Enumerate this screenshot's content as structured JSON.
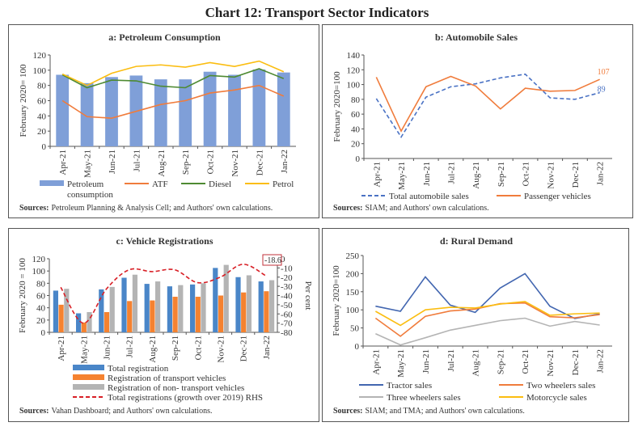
{
  "title": "Chart 12: Transport Sector Indicators",
  "colors": {
    "blue_bar": "#7f9fd8",
    "orange": "#f07c3c",
    "green": "#4e8a32",
    "yellow": "#fbbd10",
    "navy": "#4266b0",
    "gray": "#b4b4b4",
    "tblue": "#4a86c8",
    "torange": "#f58230",
    "red": "#d81f26",
    "dashblue": "#4a72c4"
  },
  "chart_data": [
    {
      "type": "bar+line",
      "title": "a: Petroleum Consumption",
      "ylabel": "February 2020= 100",
      "ylim": [
        0,
        120
      ],
      "yticks": [
        0,
        20,
        40,
        60,
        80,
        100,
        120
      ],
      "categories": [
        "Apr-21",
        "May-21",
        "Jun-21",
        "Jul-21",
        "Aug-21",
        "Sep-21",
        "Oct-21",
        "Nov-21",
        "Dec-21",
        "Jan-22"
      ],
      "series": [
        {
          "name": "Petroleum consumption",
          "name_lines": [
            "Petroleum",
            "consumption"
          ],
          "kind": "bar",
          "color": "#7f9fd8",
          "values": [
            94,
            83,
            91,
            93,
            88,
            88,
            98,
            94,
            101,
            97
          ]
        },
        {
          "name": "ATF",
          "kind": "line",
          "color": "#f07c3c",
          "values": [
            60,
            39,
            37,
            46,
            55,
            60,
            70,
            74,
            80,
            66
          ]
        },
        {
          "name": "Diesel",
          "kind": "line",
          "color": "#4e8a32",
          "values": [
            94,
            77,
            87,
            86,
            79,
            77,
            93,
            91,
            102,
            89
          ]
        },
        {
          "name": "Petrol",
          "kind": "line",
          "color": "#fbbd10",
          "values": [
            95,
            80,
            96,
            105,
            107,
            104,
            110,
            105,
            112,
            98
          ]
        }
      ],
      "legend": "bottom",
      "source_label": "Sources:",
      "source": "Petroleum Planning & Analysis Cell; and Authors' own calculations."
    },
    {
      "type": "line",
      "title": "b: Automobile Sales",
      "ylabel": "February 2020=100",
      "ylim": [
        0,
        140
      ],
      "yticks": [
        0,
        20,
        40,
        60,
        80,
        100,
        120,
        140
      ],
      "categories": [
        "Apr-21",
        "May-21",
        "Jun-21",
        "Jul-21",
        "Aug-21",
        "Sep-21",
        "Oct-21",
        "Nov-21",
        "Dec-21",
        "Jan-22"
      ],
      "series": [
        {
          "name": "Total automobile sales",
          "kind": "dashed",
          "color": "#4a72c4",
          "values": [
            81,
            29,
            83,
            97,
            101,
            109,
            114,
            82,
            80,
            89
          ],
          "end_label": "89"
        },
        {
          "name": "Passenger vehicles",
          "kind": "line",
          "color": "#f07c3c",
          "values": [
            110,
            37,
            97,
            111,
            98,
            67,
            95,
            91,
            92,
            107
          ],
          "end_label": "107"
        }
      ],
      "legend": "bottom",
      "source_label": "Sources:",
      "source": "SIAM; and Authors' own calculations."
    },
    {
      "type": "bar+line",
      "title": "c: Vehicle Registrations",
      "ylabel": "February 2020 = 100",
      "ylim": [
        0,
        120
      ],
      "yticks": [
        0,
        20,
        40,
        60,
        80,
        100,
        120
      ],
      "y2label": "Per cent",
      "y2lim": [
        -80,
        0
      ],
      "y2ticks": [
        0,
        -10,
        -20,
        -30,
        -40,
        -50,
        -60,
        -70,
        -80
      ],
      "categories": [
        "Apr-21",
        "May-21",
        "Jun-21",
        "Jul-21",
        "Aug-21",
        "Sep-21",
        "Oct-21",
        "Nov-21",
        "Dec-21",
        "Jan-22"
      ],
      "series": [
        {
          "name": "Total registration",
          "kind": "bar",
          "color": "#4a86c8",
          "values": [
            68,
            31,
            70,
            89,
            79,
            75,
            78,
            105,
            90,
            83
          ]
        },
        {
          "name": "Registration of transport vehicles",
          "kind": "bar",
          "color": "#f58230",
          "values": [
            45,
            16,
            33,
            51,
            52,
            58,
            58,
            60,
            65,
            67
          ]
        },
        {
          "name": "Registration of non- transport vehicles",
          "kind": "bar",
          "color": "#b4b4b4",
          "values": [
            71,
            33,
            74,
            94,
            83,
            77,
            80,
            110,
            93,
            85
          ]
        },
        {
          "name": "Total registrations (growth over 2019) RHS",
          "kind": "dashed-rhs",
          "color": "#d81f26",
          "values": [
            -31,
            -70,
            -33,
            -12,
            -14,
            -12,
            -26,
            -20,
            -6,
            -18.6
          ],
          "end_label": "-18.6"
        }
      ],
      "legend": "bottom",
      "source_label": "Sources:",
      "source": "Vahan Dashboard; and Authors' own calculations."
    },
    {
      "type": "line",
      "title": "d: Rural Demand",
      "ylabel": "February 2020=100",
      "ylim": [
        0,
        250
      ],
      "yticks": [
        0,
        50,
        100,
        150,
        200,
        250
      ],
      "categories": [
        "Apr-21",
        "May-21",
        "Jun-21",
        "Jul-21",
        "Aug-21",
        "Sep-21",
        "Oct-21",
        "Nov-21",
        "Dec-21",
        "Jan-22"
      ],
      "series": [
        {
          "name": "Tractor sales",
          "kind": "line",
          "color": "#4266b0",
          "values": [
            110,
            96,
            191,
            113,
            93,
            160,
            200,
            110,
            76,
            89
          ]
        },
        {
          "name": "Two wheelers sales",
          "kind": "line",
          "color": "#f07c3c",
          "values": [
            77,
            27,
            82,
            97,
            102,
            117,
            119,
            81,
            78,
            87
          ]
        },
        {
          "name": "Three wheelers sales",
          "kind": "line",
          "color": "#b4b4b4",
          "values": [
            34,
            3,
            23,
            44,
            57,
            70,
            77,
            55,
            68,
            58
          ]
        },
        {
          "name": "Motorcycle sales",
          "kind": "line",
          "color": "#fbbd10",
          "values": [
            96,
            57,
            100,
            107,
            105,
            116,
            123,
            85,
            89,
            91
          ]
        }
      ],
      "legend": "bottom",
      "source_label": "Sources:",
      "source": "SIAM; and TMA; and Authors' own calculations."
    }
  ]
}
